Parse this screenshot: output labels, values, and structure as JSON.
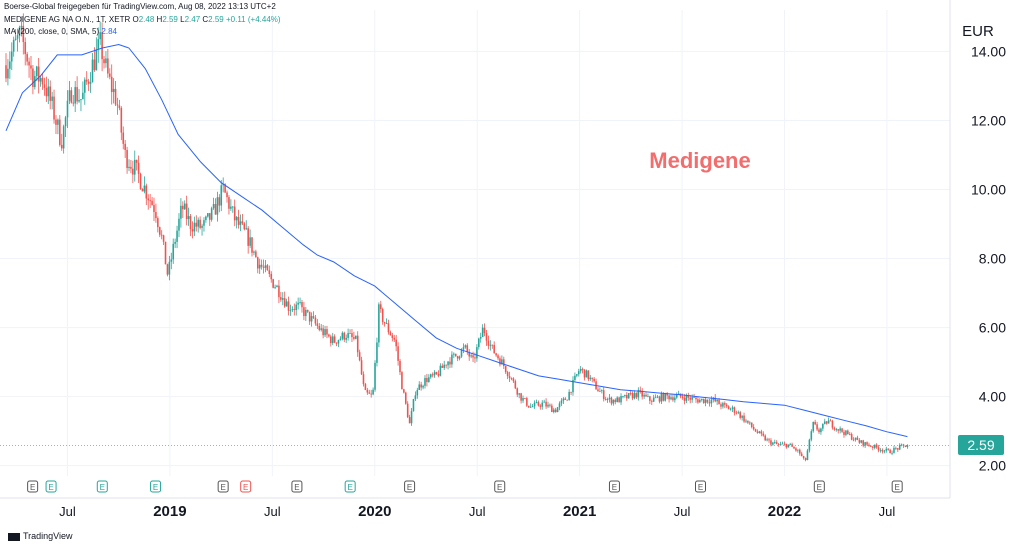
{
  "header": {
    "source": "Boerse-Global freigegeben für TradingView.com, Aug 08, 2022 13:13 UTC+2",
    "symbol": "MEDIGENE AG NA O.N., 1T, XETR",
    "o_label": "O",
    "o_value": "2.48",
    "h_label": "H",
    "h_value": "2.59",
    "l_label": "L",
    "l_value": "2.47",
    "c_label": "C",
    "c_value": "2.59",
    "change": "+0.11 (+4.44%)",
    "ma_label": "MA (200, close, 0, SMA, 5)",
    "ma_value": "2.84"
  },
  "current_price": "2.59",
  "footer": {
    "brand": "TradingView"
  },
  "colors": {
    "up": "#26a69a",
    "down": "#ef5350",
    "ma": "#2962ff",
    "watermark": "#f26d6d",
    "grid": "#f0f3fa",
    "axis_text": "#131722"
  },
  "chart_data": {
    "type": "candlestick",
    "title": "Medigene",
    "currency": "EUR",
    "ylim": [
      1.7,
      15.2
    ],
    "yticks": [
      2.0,
      4.0,
      6.0,
      8.0,
      10.0,
      12.0,
      14.0
    ],
    "ytick_labels": [
      "2.00",
      "4.00",
      "6.00",
      "8.00",
      "10.00",
      "12.00",
      "14.00"
    ],
    "x_range": [
      2018.2,
      2022.72
    ],
    "xticks": [
      {
        "label": "Jul",
        "t": 2018.5,
        "major": false
      },
      {
        "label": "2019",
        "t": 2019.0,
        "major": true
      },
      {
        "label": "Jul",
        "t": 2019.5,
        "major": false
      },
      {
        "label": "2020",
        "t": 2020.0,
        "major": true
      },
      {
        "label": "Jul",
        "t": 2020.5,
        "major": false
      },
      {
        "label": "2021",
        "t": 2021.0,
        "major": true
      },
      {
        "label": "Jul",
        "t": 2021.5,
        "major": false
      },
      {
        "label": "2022",
        "t": 2022.0,
        "major": true
      },
      {
        "label": "Jul",
        "t": 2022.5,
        "major": false
      }
    ],
    "price_path": [
      [
        2018.2,
        13.6
      ],
      [
        2018.27,
        14.5
      ],
      [
        2018.33,
        13.3
      ],
      [
        2018.38,
        13.2
      ],
      [
        2018.43,
        12.3
      ],
      [
        2018.47,
        11.4
      ],
      [
        2018.52,
        12.9
      ],
      [
        2018.57,
        12.6
      ],
      [
        2018.61,
        13.4
      ],
      [
        2018.64,
        13.9
      ],
      [
        2018.66,
        14.2
      ],
      [
        2018.7,
        13.2
      ],
      [
        2018.74,
        12.6
      ],
      [
        2018.78,
        11.0
      ],
      [
        2018.83,
        10.6
      ],
      [
        2018.88,
        10.0
      ],
      [
        2018.93,
        9.4
      ],
      [
        2018.96,
        8.6
      ],
      [
        2018.99,
        7.5
      ],
      [
        2019.02,
        8.4
      ],
      [
        2019.06,
        9.5
      ],
      [
        2019.1,
        9.0
      ],
      [
        2019.16,
        8.9
      ],
      [
        2019.21,
        9.3
      ],
      [
        2019.26,
        10.0
      ],
      [
        2019.32,
        9.1
      ],
      [
        2019.38,
        8.6
      ],
      [
        2019.43,
        7.9
      ],
      [
        2019.48,
        7.5
      ],
      [
        2019.53,
        7.1
      ],
      [
        2019.58,
        6.6
      ],
      [
        2019.63,
        6.6
      ],
      [
        2019.68,
        6.3
      ],
      [
        2019.74,
        5.9
      ],
      [
        2019.8,
        5.6
      ],
      [
        2019.86,
        5.8
      ],
      [
        2019.91,
        5.6
      ],
      [
        2019.95,
        4.1
      ],
      [
        2019.99,
        4.0
      ],
      [
        2020.02,
        6.5
      ],
      [
        2020.06,
        6.0
      ],
      [
        2020.1,
        5.6
      ],
      [
        2020.13,
        4.4
      ],
      [
        2020.17,
        3.2
      ],
      [
        2020.2,
        4.2
      ],
      [
        2020.25,
        4.5
      ],
      [
        2020.3,
        4.6
      ],
      [
        2020.35,
        5.0
      ],
      [
        2020.4,
        5.2
      ],
      [
        2020.44,
        5.4
      ],
      [
        2020.48,
        5.0
      ],
      [
        2020.53,
        6.0
      ],
      [
        2020.57,
        5.4
      ],
      [
        2020.62,
        5.0
      ],
      [
        2020.66,
        4.6
      ],
      [
        2020.71,
        4.0
      ],
      [
        2020.76,
        3.7
      ],
      [
        2020.82,
        3.8
      ],
      [
        2020.88,
        3.6
      ],
      [
        2020.94,
        4.0
      ],
      [
        2021.0,
        4.8
      ],
      [
        2021.04,
        4.6
      ],
      [
        2021.09,
        4.2
      ],
      [
        2021.14,
        3.9
      ],
      [
        2021.19,
        3.9
      ],
      [
        2021.24,
        4.0
      ],
      [
        2021.29,
        4.1
      ],
      [
        2021.34,
        3.9
      ],
      [
        2021.42,
        4.0
      ],
      [
        2021.5,
        4.0
      ],
      [
        2021.58,
        3.9
      ],
      [
        2021.65,
        3.9
      ],
      [
        2021.71,
        3.7
      ],
      [
        2021.76,
        3.6
      ],
      [
        2021.81,
        3.3
      ],
      [
        2021.86,
        3.0
      ],
      [
        2021.92,
        2.7
      ],
      [
        2021.97,
        2.6
      ],
      [
        2022.02,
        2.6
      ],
      [
        2022.07,
        2.4
      ],
      [
        2022.1,
        2.1
      ],
      [
        2022.14,
        3.2
      ],
      [
        2022.17,
        3.0
      ],
      [
        2022.21,
        3.3
      ],
      [
        2022.25,
        3.1
      ],
      [
        2022.31,
        2.9
      ],
      [
        2022.36,
        2.7
      ],
      [
        2022.41,
        2.6
      ],
      [
        2022.46,
        2.5
      ],
      [
        2022.51,
        2.4
      ],
      [
        2022.55,
        2.5
      ],
      [
        2022.6,
        2.6
      ]
    ],
    "ma200_path": [
      [
        2018.2,
        11.7
      ],
      [
        2018.28,
        12.8
      ],
      [
        2018.37,
        13.3
      ],
      [
        2018.45,
        13.9
      ],
      [
        2018.57,
        13.9
      ],
      [
        2018.67,
        14.1
      ],
      [
        2018.75,
        14.2
      ],
      [
        2018.8,
        14.1
      ],
      [
        2018.88,
        13.5
      ],
      [
        2018.96,
        12.6
      ],
      [
        2019.04,
        11.6
      ],
      [
        2019.15,
        10.8
      ],
      [
        2019.25,
        10.2
      ],
      [
        2019.35,
        9.8
      ],
      [
        2019.45,
        9.4
      ],
      [
        2019.55,
        8.9
      ],
      [
        2019.65,
        8.4
      ],
      [
        2019.72,
        8.1
      ],
      [
        2019.8,
        7.9
      ],
      [
        2019.9,
        7.5
      ],
      [
        2020.0,
        7.2
      ],
      [
        2020.1,
        6.7
      ],
      [
        2020.2,
        6.2
      ],
      [
        2020.3,
        5.7
      ],
      [
        2020.4,
        5.4
      ],
      [
        2020.5,
        5.2
      ],
      [
        2020.6,
        5.0
      ],
      [
        2020.7,
        4.8
      ],
      [
        2020.8,
        4.6
      ],
      [
        2020.9,
        4.5
      ],
      [
        2021.0,
        4.4
      ],
      [
        2021.1,
        4.3
      ],
      [
        2021.2,
        4.2
      ],
      [
        2021.3,
        4.15
      ],
      [
        2021.4,
        4.1
      ],
      [
        2021.5,
        4.05
      ],
      [
        2021.6,
        3.98
      ],
      [
        2021.7,
        3.92
      ],
      [
        2021.8,
        3.85
      ],
      [
        2021.9,
        3.8
      ],
      [
        2022.0,
        3.75
      ],
      [
        2022.1,
        3.6
      ],
      [
        2022.2,
        3.45
      ],
      [
        2022.3,
        3.3
      ],
      [
        2022.4,
        3.15
      ],
      [
        2022.5,
        2.98
      ],
      [
        2022.6,
        2.84
      ]
    ],
    "events": [
      {
        "label": "E",
        "t": 2018.33,
        "kind": "earnings"
      },
      {
        "label": "E",
        "t": 2018.42,
        "kind": "earnings-green"
      },
      {
        "label": "E",
        "t": 2018.67,
        "kind": "earnings-green"
      },
      {
        "label": "E",
        "t": 2018.93,
        "kind": "earnings-green"
      },
      {
        "label": "E",
        "t": 2019.26,
        "kind": "earnings"
      },
      {
        "label": "E",
        "t": 2019.37,
        "kind": "earnings-red"
      },
      {
        "label": "E",
        "t": 2019.62,
        "kind": "earnings"
      },
      {
        "label": "E",
        "t": 2019.88,
        "kind": "earnings-green"
      },
      {
        "label": "E",
        "t": 2020.17,
        "kind": "earnings"
      },
      {
        "label": "E",
        "t": 2020.61,
        "kind": "earnings"
      },
      {
        "label": "E",
        "t": 2021.17,
        "kind": "earnings"
      },
      {
        "label": "E",
        "t": 2021.59,
        "kind": "earnings"
      },
      {
        "label": "E",
        "t": 2022.17,
        "kind": "earnings"
      },
      {
        "label": "E",
        "t": 2022.55,
        "kind": "earnings"
      }
    ]
  }
}
